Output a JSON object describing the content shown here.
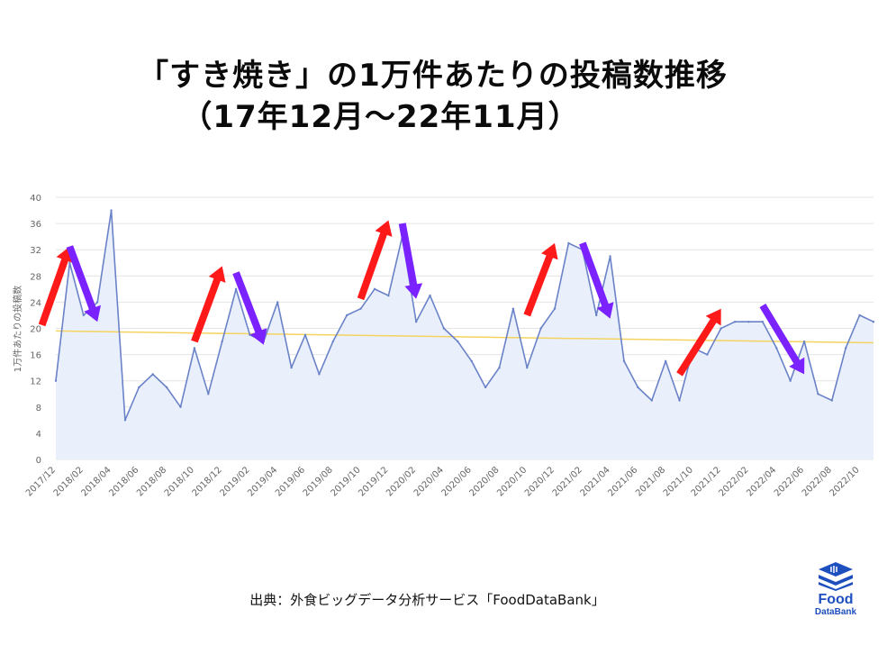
{
  "title_line1": "「すき焼き」の1万件あたりの投稿数推移",
  "title_line2": "（17年12月～22年11月）",
  "source": "出典：外食ビッグデータ分析サービス「FoodDataBank」",
  "logo": {
    "brand": "Food",
    "sub": "DataBank"
  },
  "colors": {
    "line": "#6a82c8",
    "area": "#eaf0fb",
    "trend": "#f4d35e",
    "up_arrow": "#ff1a1a",
    "down_arrow": "#7a22ff",
    "grid": "#e4e4e4",
    "logo": "#1e4fbf"
  },
  "chart_data": {
    "type": "area",
    "ylabel": "1万件あたりの投稿数",
    "ylim": [
      0,
      40
    ],
    "yticks": [
      0,
      4,
      8,
      12,
      16,
      20,
      24,
      28,
      32,
      36,
      40
    ],
    "xtick_labels": [
      "2017/12",
      "2018/02",
      "2018/04",
      "2018/06",
      "2018/08",
      "2018/10",
      "2018/12",
      "2019/02",
      "2019/04",
      "2019/06",
      "2019/08",
      "2019/10",
      "2019/12",
      "2020/02",
      "2020/04",
      "2020/06",
      "2020/08",
      "2020/10",
      "2020/12",
      "2021/02",
      "2021/04",
      "2021/06",
      "2021/08",
      "2021/10",
      "2021/12",
      "2022/02",
      "2022/04",
      "2022/06",
      "2022/08",
      "2022/10"
    ],
    "x": [
      "2017/12",
      "2018/01",
      "2018/02",
      "2018/03",
      "2018/04",
      "2018/05",
      "2018/06",
      "2018/07",
      "2018/08",
      "2018/09",
      "2018/10",
      "2018/11",
      "2018/12",
      "2019/01",
      "2019/02",
      "2019/03",
      "2019/04",
      "2019/05",
      "2019/06",
      "2019/07",
      "2019/08",
      "2019/09",
      "2019/10",
      "2019/11",
      "2019/12",
      "2020/01",
      "2020/02",
      "2020/03",
      "2020/04",
      "2020/05",
      "2020/06",
      "2020/07",
      "2020/08",
      "2020/09",
      "2020/10",
      "2020/11",
      "2020/12",
      "2021/01",
      "2021/02",
      "2021/03",
      "2021/04",
      "2021/05",
      "2021/06",
      "2021/07",
      "2021/08",
      "2021/09",
      "2021/10",
      "2021/11",
      "2021/12",
      "2022/01",
      "2022/02",
      "2022/03",
      "2022/04",
      "2022/05",
      "2022/06",
      "2022/07",
      "2022/08",
      "2022/09",
      "2022/10",
      "2022/11"
    ],
    "series": [
      {
        "values": [
          12,
          30,
          22,
          24,
          38,
          6,
          11,
          13,
          11,
          8,
          17,
          10,
          18,
          26,
          19,
          18,
          24,
          14,
          19,
          13,
          18,
          22,
          23,
          26,
          25,
          34,
          21,
          25,
          20,
          18,
          15,
          11,
          14,
          23,
          14,
          20,
          23,
          33,
          32,
          22,
          31,
          15,
          11,
          9,
          15,
          9,
          17,
          16,
          20,
          21,
          21,
          21,
          17,
          12,
          18,
          10,
          9,
          17,
          22,
          21
        ]
      }
    ],
    "trendline": {
      "start": 19.6,
      "end": 17.8
    },
    "up_arrows": [
      [
        "2017/11",
        20.5,
        "2018/01",
        32.5
      ],
      [
        "2018/10",
        18,
        "2018/12",
        29.5
      ],
      [
        "2019/10",
        24.5,
        "2019/12",
        36.5
      ],
      [
        "2020/10",
        22,
        "2020/12",
        33
      ],
      [
        "2021/09",
        13,
        "2021/12",
        23
      ]
    ],
    "down_arrows": [
      [
        "2018/01",
        32.5,
        "2018/03",
        21
      ],
      [
        "2019/01",
        28.5,
        "2019/03",
        17.5
      ],
      [
        "2020/01",
        36,
        "2020/02",
        24.5
      ],
      [
        "2021/02",
        33,
        "2021/04",
        21.5
      ],
      [
        "2022/03",
        23.5,
        "2022/06",
        13
      ]
    ]
  }
}
